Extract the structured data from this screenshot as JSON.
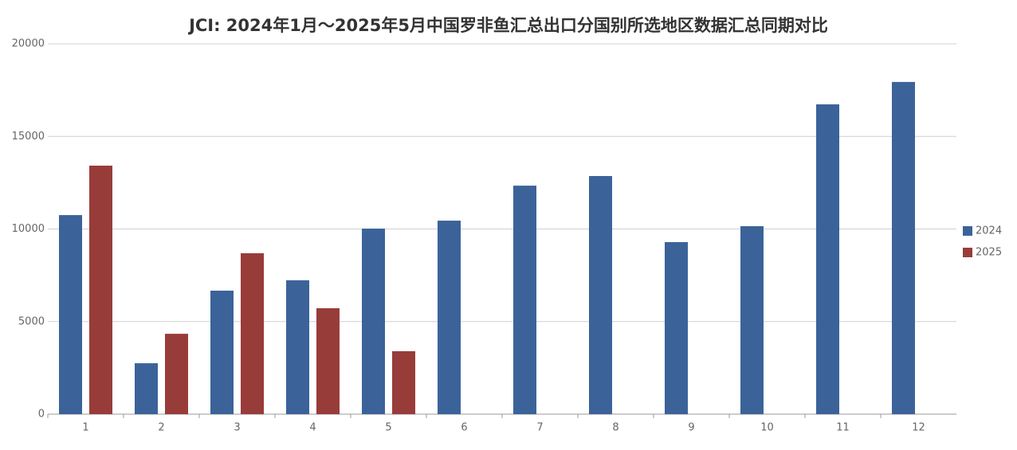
{
  "chart_data": {
    "type": "bar",
    "title": "JCI: 2024年1月～2025年5月中国罗非鱼汇总出口分国别所选地区数据汇总同期对比",
    "categories": [
      "1",
      "2",
      "3",
      "4",
      "5",
      "6",
      "7",
      "8",
      "9",
      "10",
      "11",
      "12"
    ],
    "series": [
      {
        "name": "2024",
        "color": "#3b6399",
        "values": [
          10750,
          2750,
          6670,
          7230,
          10020,
          10450,
          12340,
          12860,
          9290,
          10150,
          16730,
          17940
        ]
      },
      {
        "name": "2025",
        "color": "#983c3a",
        "values": [
          13420,
          4340,
          8690,
          5720,
          3400,
          null,
          null,
          null,
          null,
          null,
          null,
          null
        ]
      }
    ],
    "ylim": [
      0,
      20000
    ],
    "yticks": [
      0,
      5000,
      10000,
      15000,
      20000
    ],
    "grid": true,
    "legend": "right"
  }
}
